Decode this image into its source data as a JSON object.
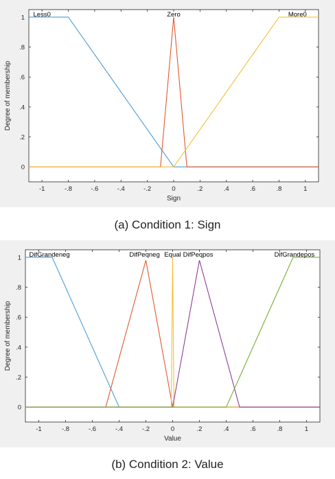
{
  "captions": {
    "a": "(a) Condition 1: Sign",
    "b": "(b) Condition 2: Value"
  },
  "chart_data": [
    {
      "type": "line",
      "xlabel": "Sign",
      "ylabel": "Degree of membership",
      "xlim": [
        -1.1,
        1.1
      ],
      "ylim": [
        -0.1,
        1.05
      ],
      "xticks": [
        -1,
        -0.8,
        -0.6,
        -0.4,
        -0.2,
        0,
        0.2,
        0.4,
        0.6,
        0.8,
        1
      ],
      "yticks": [
        0,
        0.2,
        0.4,
        0.6,
        0.8,
        1
      ],
      "grid": false,
      "series": [
        {
          "name": "Less0",
          "color": "#4a9bd6",
          "x": [
            -1.1,
            -0.8,
            0,
            1.1
          ],
          "y": [
            1,
            1,
            0,
            0
          ],
          "label_x": -1.0
        },
        {
          "name": "Zero",
          "color": "#e2582c",
          "x": [
            -1.1,
            -0.1,
            0,
            0.1,
            1.1
          ],
          "y": [
            0,
            0,
            1,
            0,
            0
          ],
          "label_x": 0.0
        },
        {
          "name": "More0",
          "color": "#f2c037",
          "x": [
            -1.1,
            0,
            0.8,
            1.1
          ],
          "y": [
            0,
            0,
            1,
            1
          ],
          "label_x": 0.94
        }
      ]
    },
    {
      "type": "line",
      "xlabel": "Value",
      "ylabel": "Degree of membership",
      "xlim": [
        -1.1,
        1.1
      ],
      "ylim": [
        -0.1,
        1.05
      ],
      "xticks": [
        -1,
        -0.8,
        -0.6,
        -0.4,
        -0.2,
        0,
        0.2,
        0.4,
        0.6,
        0.8,
        1
      ],
      "yticks": [
        0,
        0.2,
        0.4,
        0.6,
        0.8,
        1
      ],
      "grid": false,
      "series": [
        {
          "name": "DifGrandeneg",
          "color": "#4a9bd6",
          "x": [
            -1.1,
            -0.9,
            -0.4,
            1.1
          ],
          "y": [
            1,
            1,
            0,
            0
          ],
          "label_x": -0.92
        },
        {
          "name": "DifPeqneg",
          "color": "#e2582c",
          "x": [
            -1.1,
            -0.5,
            -0.2,
            0,
            1.1
          ],
          "y": [
            0,
            0,
            0.98,
            0,
            0
          ],
          "label_x": -0.21
        },
        {
          "name": "Equal",
          "color": "#f2c037",
          "x": [
            -1.1,
            -0.01,
            0,
            0.01,
            1.1
          ],
          "y": [
            0,
            0,
            1,
            0,
            0
          ],
          "label_x": 0.0
        },
        {
          "name": "DifPeqpos",
          "color": "#8e3c96",
          "x": [
            -1.1,
            0,
            0.2,
            0.5,
            1.1
          ],
          "y": [
            0,
            0,
            0.98,
            0,
            0
          ],
          "label_x": 0.19
        },
        {
          "name": "DifGrandepos",
          "color": "#77ac30",
          "x": [
            -1.1,
            0.4,
            0.9,
            1.1
          ],
          "y": [
            0,
            0,
            1,
            1
          ],
          "label_x": 0.91
        }
      ]
    }
  ]
}
